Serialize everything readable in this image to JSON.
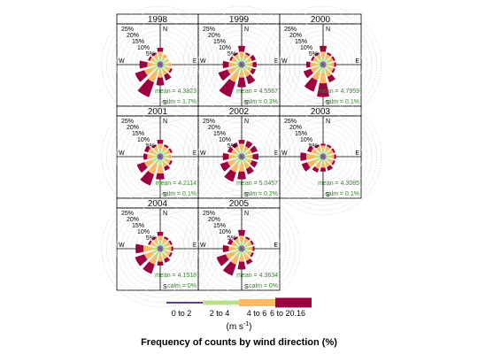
{
  "chart_data": {
    "type": "windrose",
    "title": "Frequency of counts by wind direction (%)",
    "unit_label": "(m s",
    "unit_exp": "-1",
    "unit_close": ")",
    "ring_labels": [
      "5%",
      "10%",
      "15%",
      "20%",
      "25%"
    ],
    "compass": {
      "n": "N",
      "e": "E",
      "s": "S",
      "w": "W"
    },
    "colors": [
      "#5e3c99",
      "#b8e186",
      "#fdb863",
      "#9e0142"
    ],
    "legend": [
      "0 to 2",
      "2 to 4",
      "4 to 6",
      "6 to 20.16"
    ],
    "directions_deg": [
      0,
      30,
      60,
      90,
      120,
      150,
      180,
      210,
      240,
      270,
      300,
      330
    ],
    "panels": [
      {
        "year": "1998",
        "mean": "mean = 4.3823",
        "calm": "calm = 1.7%",
        "values": [
          [
            1,
            2,
            3,
            2
          ],
          [
            1,
            2,
            2,
            0
          ],
          [
            1,
            2,
            1,
            0
          ],
          [
            1,
            2,
            2,
            0
          ],
          [
            1,
            2,
            2,
            1
          ],
          [
            1,
            2,
            2,
            3
          ],
          [
            1,
            2,
            3,
            4
          ],
          [
            1,
            3,
            5,
            8
          ],
          [
            1,
            3,
            4,
            5
          ],
          [
            1,
            2,
            3,
            4
          ],
          [
            1,
            2,
            2,
            1
          ],
          [
            1,
            2,
            2,
            1
          ]
        ]
      },
      {
        "year": "1999",
        "mean": "mean = 4.5567",
        "calm": "calm = 0.3%",
        "values": [
          [
            1,
            2,
            3,
            3
          ],
          [
            1,
            2,
            2,
            1
          ],
          [
            1,
            2,
            2,
            2
          ],
          [
            1,
            2,
            2,
            2
          ],
          [
            1,
            2,
            2,
            2
          ],
          [
            1,
            2,
            3,
            4
          ],
          [
            1,
            2,
            3,
            5
          ],
          [
            1,
            3,
            5,
            8
          ],
          [
            1,
            2,
            4,
            5
          ],
          [
            1,
            2,
            3,
            3
          ],
          [
            1,
            2,
            2,
            1
          ],
          [
            1,
            2,
            2,
            1
          ]
        ]
      },
      {
        "year": "2000",
        "mean": "mean = 4.7959",
        "calm": "calm = 0.1%",
        "values": [
          [
            1,
            2,
            3,
            3
          ],
          [
            1,
            2,
            2,
            1
          ],
          [
            1,
            2,
            2,
            1
          ],
          [
            1,
            2,
            2,
            1
          ],
          [
            1,
            2,
            2,
            1
          ],
          [
            1,
            2,
            3,
            3
          ],
          [
            1,
            3,
            5,
            7
          ],
          [
            1,
            3,
            4,
            6
          ],
          [
            1,
            2,
            3,
            4
          ],
          [
            1,
            2,
            3,
            2
          ],
          [
            1,
            2,
            2,
            1
          ],
          [
            1,
            2,
            2,
            1
          ]
        ]
      },
      {
        "year": "2001",
        "mean": "mean = 4.2114",
        "calm": "calm = 0.1%",
        "values": [
          [
            1,
            2,
            3,
            2
          ],
          [
            1,
            2,
            2,
            1
          ],
          [
            1,
            2,
            2,
            1
          ],
          [
            1,
            2,
            2,
            0
          ],
          [
            1,
            2,
            2,
            1
          ],
          [
            1,
            2,
            2,
            2
          ],
          [
            1,
            3,
            4,
            3
          ],
          [
            1,
            3,
            5,
            6
          ],
          [
            1,
            3,
            4,
            4
          ],
          [
            1,
            2,
            3,
            2
          ],
          [
            1,
            2,
            3,
            2
          ],
          [
            1,
            2,
            2,
            1
          ]
        ]
      },
      {
        "year": "2002",
        "mean": "mean = 5.0457",
        "calm": "calm = 0.2%",
        "values": [
          [
            1,
            2,
            3,
            2
          ],
          [
            1,
            2,
            2,
            3
          ],
          [
            1,
            2,
            2,
            3
          ],
          [
            1,
            2,
            2,
            3
          ],
          [
            1,
            2,
            2,
            3
          ],
          [
            1,
            2,
            3,
            3
          ],
          [
            1,
            2,
            4,
            4
          ],
          [
            1,
            3,
            4,
            5
          ],
          [
            1,
            3,
            3,
            4
          ],
          [
            1,
            2,
            3,
            3
          ],
          [
            1,
            2,
            2,
            2
          ],
          [
            1,
            2,
            2,
            2
          ]
        ]
      },
      {
        "year": "2003",
        "mean": "mean = 4.3085",
        "calm": "calm = 0.1%",
        "values": [
          [
            1,
            2,
            2,
            1
          ],
          [
            1,
            2,
            2,
            1
          ],
          [
            1,
            2,
            2,
            1
          ],
          [
            1,
            2,
            2,
            1
          ],
          [
            1,
            2,
            2,
            1
          ],
          [
            1,
            2,
            2,
            2
          ],
          [
            1,
            2,
            2,
            2
          ],
          [
            1,
            2,
            3,
            2
          ],
          [
            1,
            3,
            4,
            3
          ],
          [
            1,
            3,
            4,
            3
          ],
          [
            1,
            2,
            3,
            2
          ],
          [
            1,
            2,
            2,
            1
          ]
        ]
      },
      {
        "year": "2004",
        "mean": "mean = 4.1518",
        "calm": "calm = 0%",
        "values": [
          [
            1,
            2,
            3,
            2
          ],
          [
            1,
            2,
            2,
            1
          ],
          [
            1,
            2,
            2,
            1
          ],
          [
            1,
            2,
            2,
            1
          ],
          [
            1,
            2,
            2,
            1
          ],
          [
            1,
            2,
            2,
            2
          ],
          [
            1,
            2,
            3,
            2
          ],
          [
            1,
            3,
            4,
            5
          ],
          [
            1,
            3,
            4,
            5
          ],
          [
            1,
            3,
            4,
            4
          ],
          [
            1,
            2,
            2,
            1
          ],
          [
            1,
            2,
            2,
            1
          ]
        ]
      },
      {
        "year": "2005",
        "mean": "mean = 4.3634",
        "calm": "calm = 0%",
        "values": [
          [
            1,
            2,
            3,
            3
          ],
          [
            1,
            2,
            2,
            1
          ],
          [
            1,
            2,
            2,
            1
          ],
          [
            1,
            2,
            2,
            1
          ],
          [
            1,
            2,
            2,
            1
          ],
          [
            1,
            2,
            3,
            2
          ],
          [
            1,
            2,
            3,
            4
          ],
          [
            1,
            3,
            4,
            6
          ],
          [
            1,
            3,
            4,
            5
          ],
          [
            1,
            2,
            3,
            3
          ],
          [
            1,
            2,
            2,
            2
          ],
          [
            1,
            2,
            2,
            1
          ]
        ]
      }
    ]
  }
}
